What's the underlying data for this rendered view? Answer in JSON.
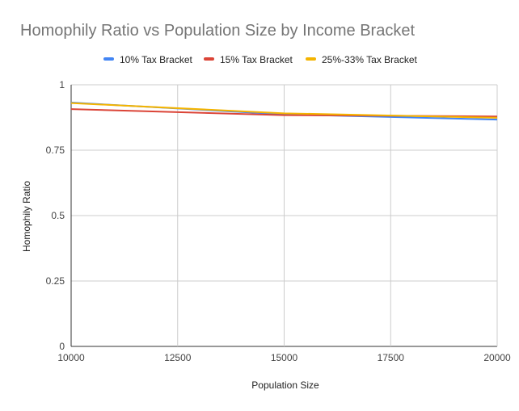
{
  "chart_data": {
    "type": "line",
    "title": "Homophily Ratio vs Population Size by Income Bracket",
    "xlabel": "Population Size",
    "ylabel": "Homophily Ratio",
    "xlim": [
      10000,
      20000
    ],
    "ylim": [
      0,
      1
    ],
    "xticks": [
      "10000",
      "12500",
      "15000",
      "17500",
      "20000"
    ],
    "yticks": [
      "0",
      "0.25",
      "0.5",
      "0.75",
      "1"
    ],
    "grid": true,
    "legend_position": "top",
    "x": [
      10000,
      15000,
      20000
    ],
    "series": [
      {
        "name": "10% Tax Bracket",
        "color": "#4285f4",
        "values": [
          0.932,
          0.887,
          0.867
        ]
      },
      {
        "name": "15% Tax Bracket",
        "color": "#db4437",
        "values": [
          0.907,
          0.884,
          0.879
        ]
      },
      {
        "name": "25%-33% Tax Bracket",
        "color": "#f4b400",
        "values": [
          0.93,
          0.891,
          0.874
        ]
      }
    ]
  }
}
